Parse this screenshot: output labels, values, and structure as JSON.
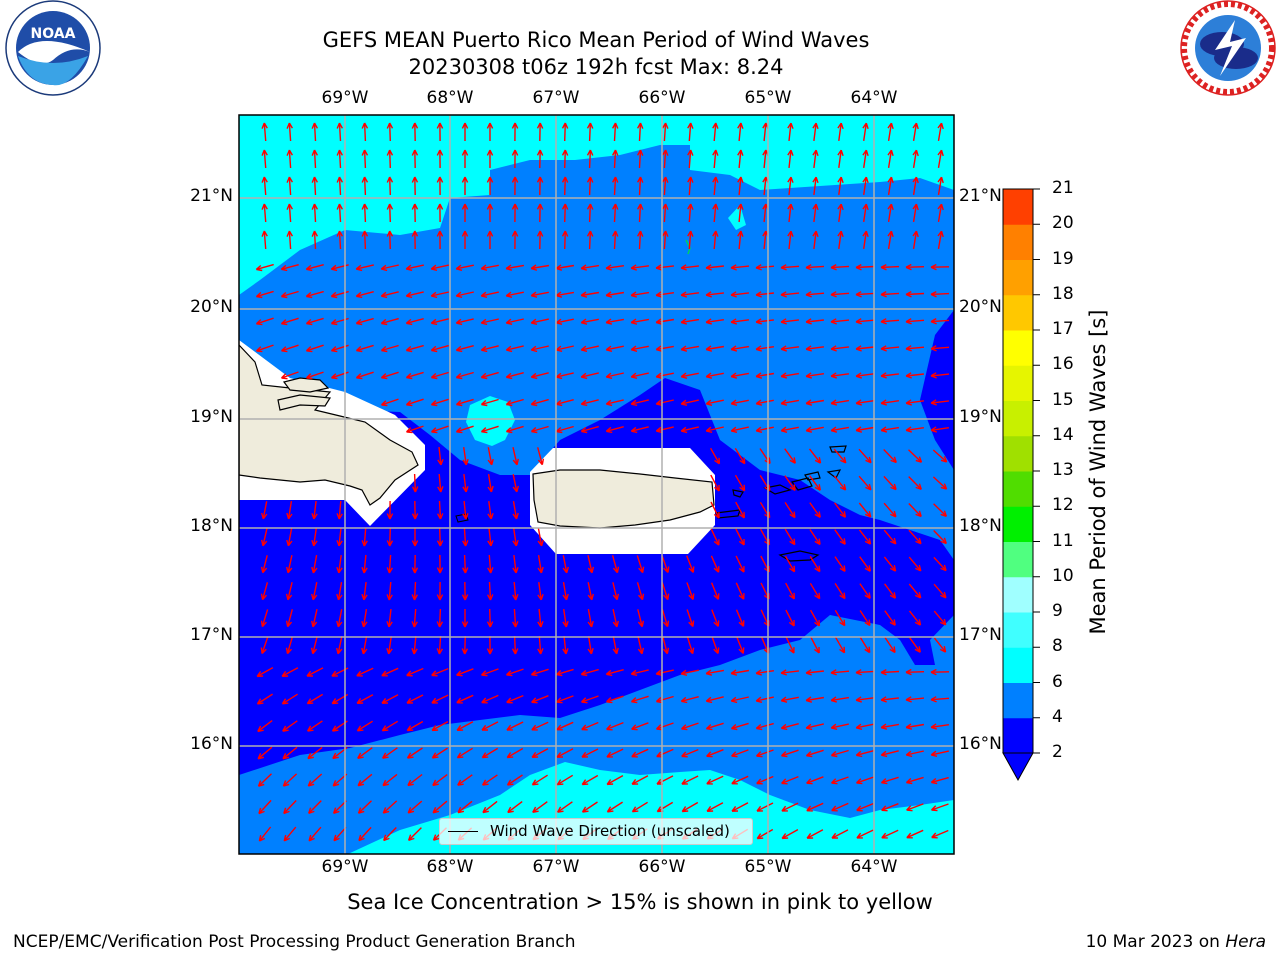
{
  "title": {
    "line1": "GEFS MEAN Puerto Rico Mean Period of Wind Waves",
    "line2": "20230308 t06z 192h fcst   Max: 8.24"
  },
  "logos": {
    "left": {
      "icon": "noaa-logo-icon",
      "text": "NOAA"
    },
    "right": {
      "icon": "nws-logo-icon"
    }
  },
  "map": {
    "lon_labels": [
      "69°W",
      "68°W",
      "67°W",
      "66°W",
      "65°W",
      "64°W"
    ],
    "lat_labels": [
      "21°N",
      "20°N",
      "19°N",
      "18°N",
      "17°N",
      "16°N"
    ],
    "legend_label": "Wind Wave Direction (unscaled)",
    "arrow_color": "#ff0000",
    "land_color": "#efecdc"
  },
  "colorbar": {
    "label": "Mean Period of Wind Waves [s]",
    "ticks": [
      "2",
      "4",
      "6",
      "8",
      "9",
      "10",
      "11",
      "12",
      "13",
      "14",
      "15",
      "16",
      "17",
      "18",
      "19",
      "20",
      "21"
    ],
    "colors": [
      "#0000ff",
      "#0080ff",
      "#00ffff",
      "#40ffff",
      "#a0ffff",
      "#50ff80",
      "#00f000",
      "#50dd00",
      "#a0e000",
      "#c8f000",
      "#e6f500",
      "#ffff00",
      "#ffc800",
      "#ffa000",
      "#ff8000",
      "#ff4000",
      "#ff0000"
    ]
  },
  "sea_ice_note": "Sea Ice Concentration > 15% is shown in pink to yellow",
  "footer": {
    "left": "NCEP/EMC/Verification Post Processing Product Generation Branch",
    "right_date": "10 Mar 2023 on ",
    "right_host": "Hera"
  }
}
